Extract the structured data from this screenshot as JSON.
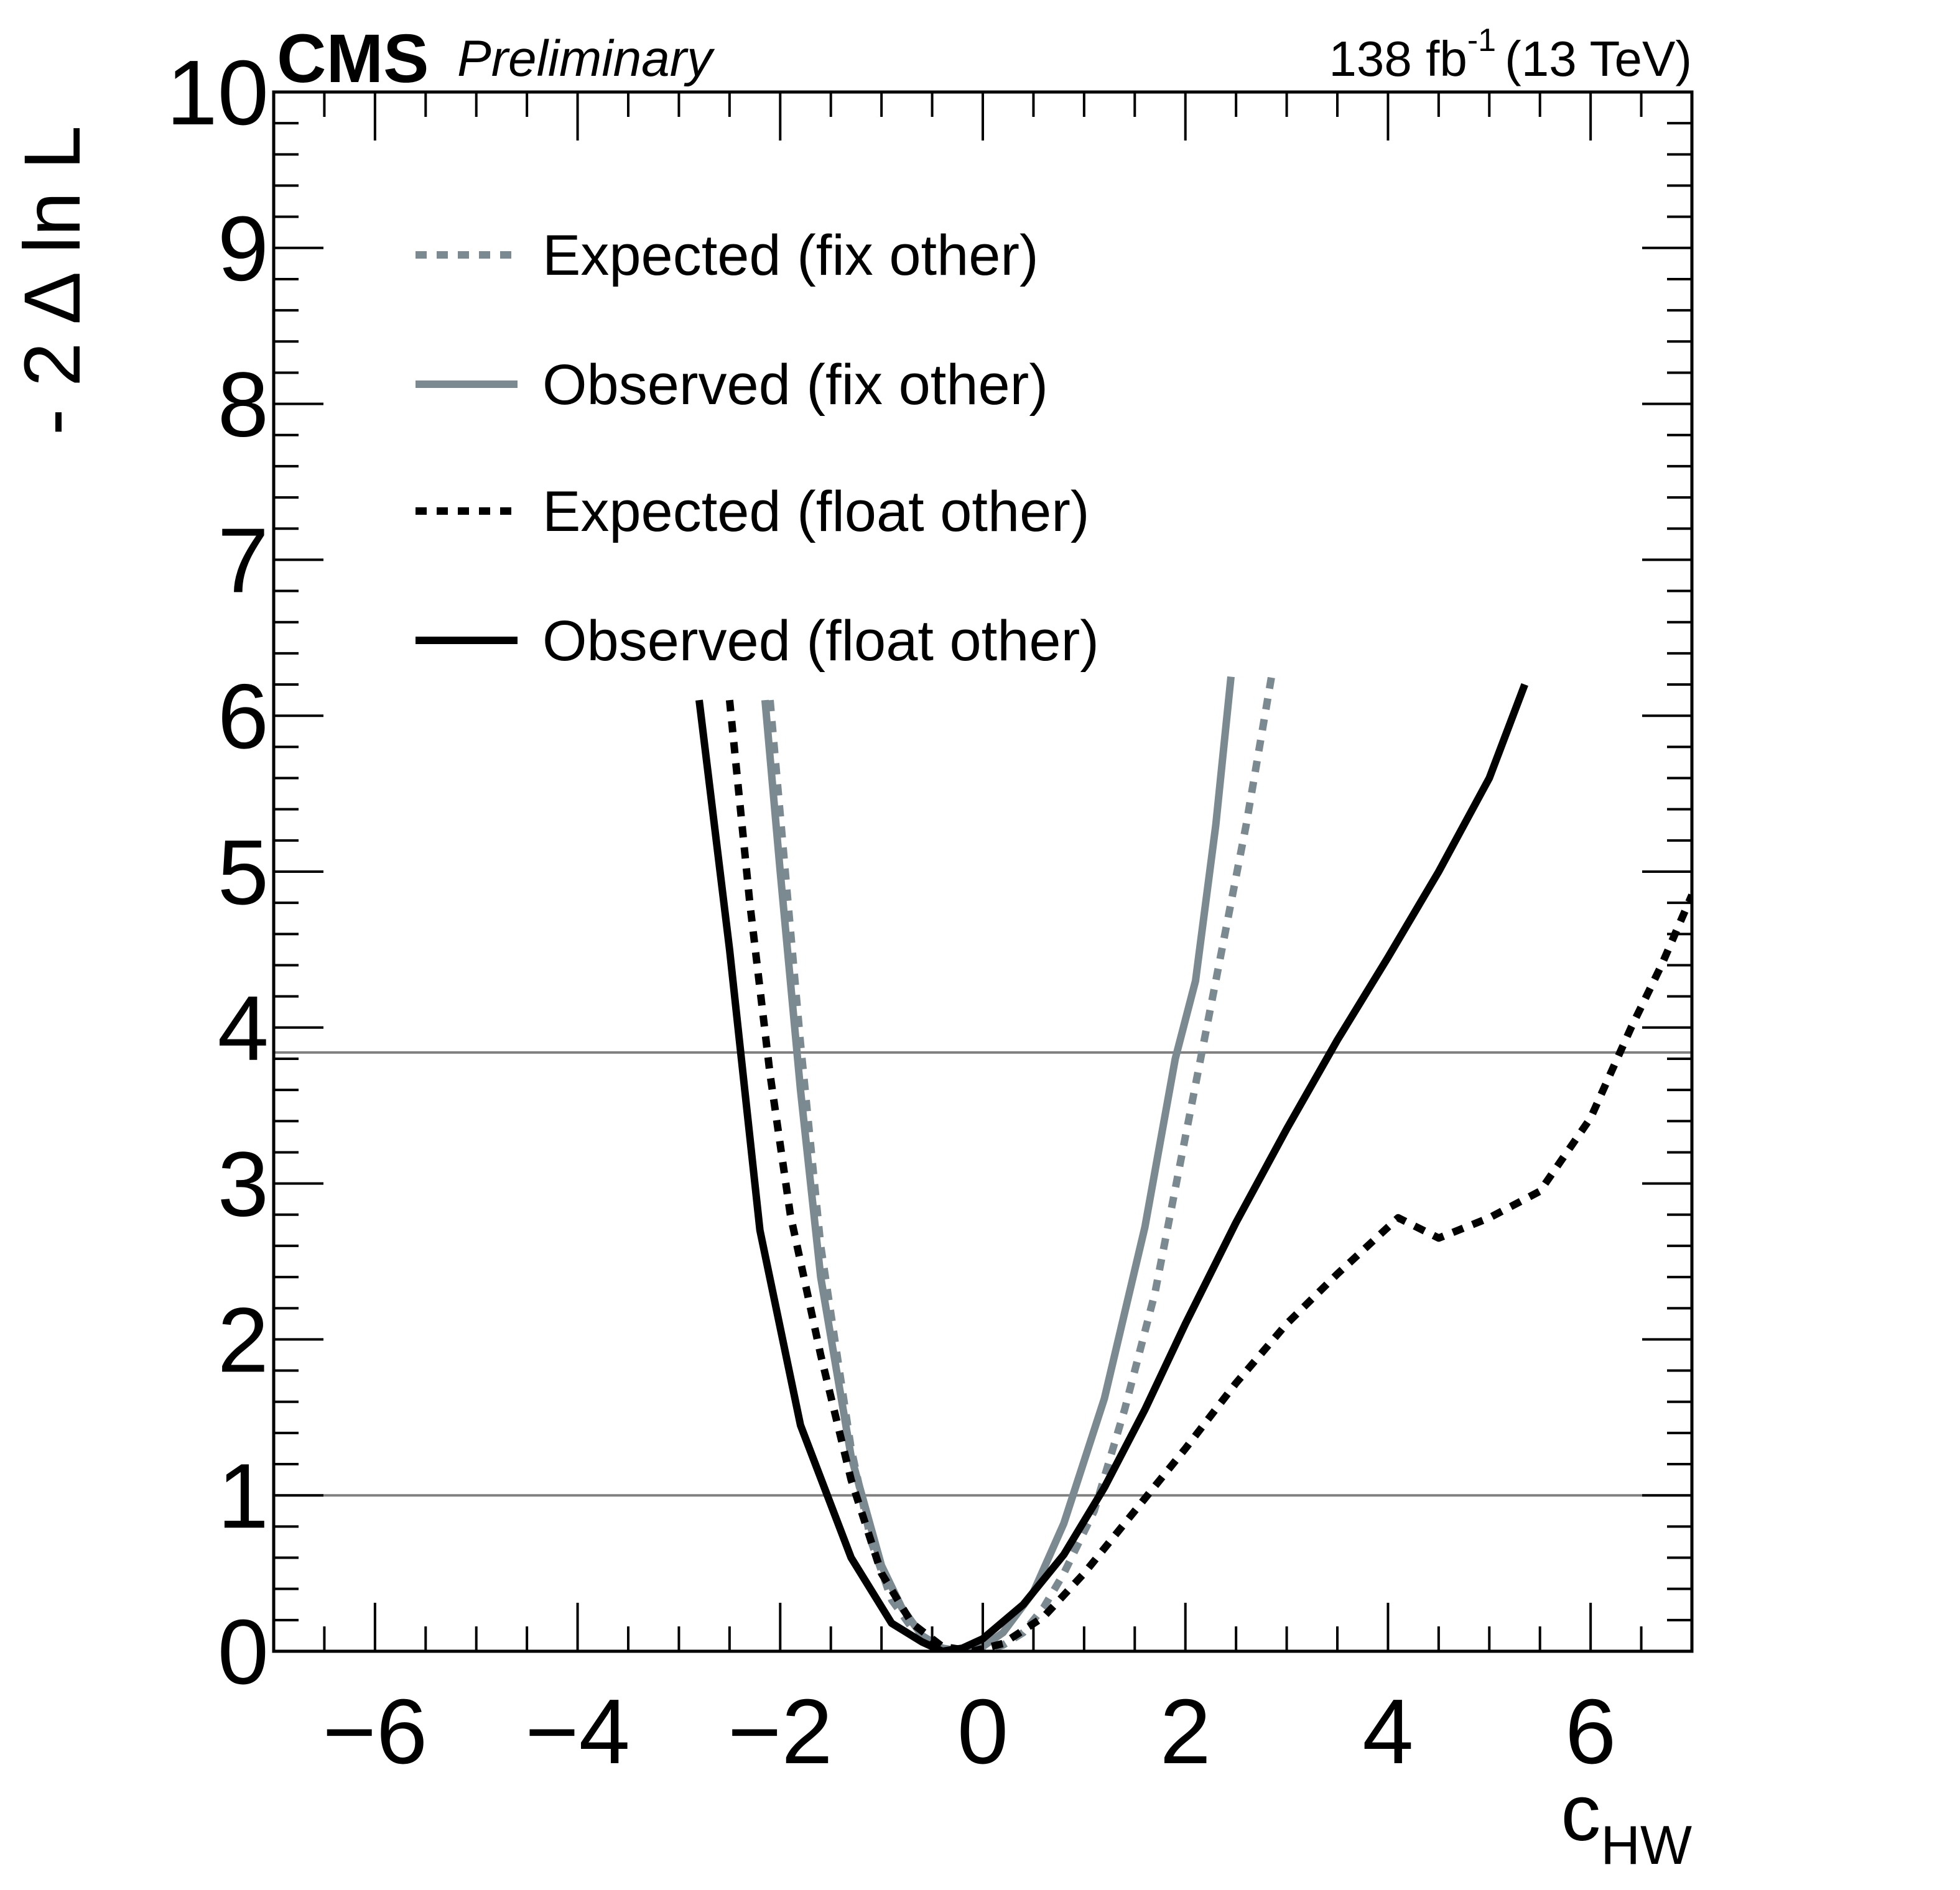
{
  "chart_data": {
    "type": "line",
    "header": {
      "experiment": "CMS",
      "status": "Preliminary",
      "lumi_value": "138 fb",
      "lumi_exponent": "-1",
      "energy": "(13 TeV)"
    },
    "xlabel": {
      "main": "c",
      "subscript": "HW"
    },
    "ylabel": "- 2 Δ ln L",
    "xlim": [
      -7,
      7
    ],
    "ylim": [
      0,
      10
    ],
    "x_ticks": [
      -6,
      -4,
      -2,
      0,
      2,
      4,
      6
    ],
    "x_tick_labels": [
      "−6",
      "−4",
      "−2",
      "0",
      "2",
      "4",
      "6"
    ],
    "y_ticks": [
      0,
      1,
      2,
      3,
      4,
      5,
      6,
      7,
      8,
      9,
      10
    ],
    "y_tick_labels": [
      "0",
      "1",
      "2",
      "3",
      "4",
      "5",
      "6",
      "7",
      "8",
      "9",
      "10"
    ],
    "reference_lines": [
      1,
      3.84
    ],
    "reference_line_color": "#808080",
    "legend_position": "upper-left",
    "grid": false,
    "series": [
      {
        "name": "Expected (fix other)",
        "color": "#7a8a90",
        "style": "dashed",
        "points": [
          [
            -2.1,
            6.1
          ],
          [
            -1.8,
            3.9
          ],
          [
            -1.6,
            2.6
          ],
          [
            -1.3,
            1.3
          ],
          [
            -1.1,
            0.7
          ],
          [
            -0.9,
            0.33
          ],
          [
            -0.7,
            0.15
          ],
          [
            -0.5,
            0.04
          ],
          [
            -0.3,
            0.0
          ],
          [
            0.0,
            0.0
          ],
          [
            0.2,
            0.04
          ],
          [
            0.4,
            0.12
          ],
          [
            0.6,
            0.28
          ],
          [
            0.8,
            0.5
          ],
          [
            1.1,
            0.9
          ],
          [
            1.4,
            1.55
          ],
          [
            1.7,
            2.3
          ],
          [
            2.0,
            3.3
          ],
          [
            2.3,
            4.3
          ],
          [
            2.6,
            5.3
          ],
          [
            2.85,
            6.25
          ]
        ]
      },
      {
        "name": "Observed (fix other)",
        "color": "#7a8a90",
        "style": "solid",
        "points": [
          [
            -2.15,
            6.1
          ],
          [
            -2.0,
            5.0
          ],
          [
            -1.8,
            3.6
          ],
          [
            -1.6,
            2.4
          ],
          [
            -1.3,
            1.25
          ],
          [
            -1.0,
            0.55
          ],
          [
            -0.8,
            0.28
          ],
          [
            -0.6,
            0.1
          ],
          [
            -0.4,
            0.02
          ],
          [
            -0.2,
            0.0
          ],
          [
            0.0,
            0.03
          ],
          [
            0.2,
            0.12
          ],
          [
            0.5,
            0.38
          ],
          [
            0.8,
            0.82
          ],
          [
            1.2,
            1.62
          ],
          [
            1.6,
            2.72
          ],
          [
            1.9,
            3.8
          ],
          [
            2.1,
            4.3
          ],
          [
            2.3,
            5.3
          ],
          [
            2.45,
            6.25
          ]
        ]
      },
      {
        "name": "Expected (float other)",
        "color": "#000000",
        "style": "dashed",
        "points": [
          [
            -2.5,
            6.1
          ],
          [
            -2.3,
            4.8
          ],
          [
            -2.1,
            3.7
          ],
          [
            -1.9,
            2.8
          ],
          [
            -1.6,
            1.9
          ],
          [
            -1.3,
            1.1
          ],
          [
            -1.0,
            0.5
          ],
          [
            -0.7,
            0.18
          ],
          [
            -0.4,
            0.03
          ],
          [
            -0.1,
            0.0
          ],
          [
            0.2,
            0.05
          ],
          [
            0.6,
            0.22
          ],
          [
            1.0,
            0.5
          ],
          [
            1.5,
            0.9
          ],
          [
            2.0,
            1.3
          ],
          [
            2.5,
            1.72
          ],
          [
            3.0,
            2.1
          ],
          [
            3.5,
            2.42
          ],
          [
            4.1,
            2.78
          ],
          [
            4.5,
            2.65
          ],
          [
            5.0,
            2.78
          ],
          [
            5.5,
            2.95
          ],
          [
            6.0,
            3.42
          ],
          [
            6.4,
            4.0
          ],
          [
            6.7,
            4.4
          ],
          [
            7.0,
            4.85
          ]
        ]
      },
      {
        "name": "Observed (float other)",
        "color": "#000000",
        "style": "solid",
        "points": [
          [
            -2.8,
            6.1
          ],
          [
            -2.5,
            4.5
          ],
          [
            -2.2,
            2.7
          ],
          [
            -1.8,
            1.45
          ],
          [
            -1.3,
            0.6
          ],
          [
            -0.9,
            0.18
          ],
          [
            -0.6,
            0.06
          ],
          [
            -0.4,
            0.0
          ],
          [
            -0.2,
            0.02
          ],
          [
            0.0,
            0.08
          ],
          [
            0.4,
            0.3
          ],
          [
            0.8,
            0.62
          ],
          [
            1.2,
            1.05
          ],
          [
            1.6,
            1.55
          ],
          [
            2.0,
            2.1
          ],
          [
            2.5,
            2.75
          ],
          [
            3.0,
            3.35
          ],
          [
            3.5,
            3.92
          ],
          [
            4.0,
            4.45
          ],
          [
            4.5,
            5.0
          ],
          [
            5.0,
            5.6
          ],
          [
            5.35,
            6.2
          ]
        ]
      }
    ]
  }
}
